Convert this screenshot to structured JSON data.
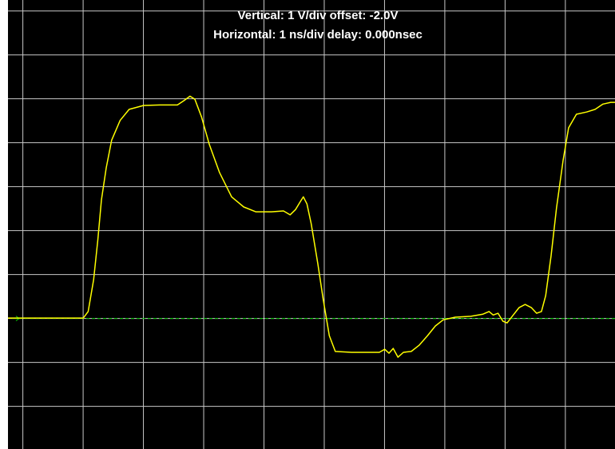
{
  "chart_data": {
    "type": "line",
    "title": "Vertical: 1 V/div  offset: -2.0V",
    "subtitle": "Horizontal: 1 ns/div  delay: 0.000nsec",
    "x": [
      -0.24,
      1.01,
      1.09,
      1.18,
      1.25,
      1.31,
      1.39,
      1.48,
      1.62,
      1.77,
      2.01,
      2.28,
      2.57,
      2.68,
      2.78,
      2.86,
      2.97,
      3.1,
      3.27,
      3.47,
      3.67,
      3.87,
      4.13,
      4.33,
      4.44,
      4.53,
      4.61,
      4.66,
      4.72,
      4.79,
      4.9,
      4.99,
      5.09,
      5.19,
      5.46,
      5.72,
      5.92,
      6.01,
      6.08,
      6.15,
      6.23,
      6.32,
      6.45,
      6.58,
      6.72,
      6.85,
      6.98,
      7.18,
      7.44,
      7.64,
      7.74,
      7.81,
      7.89,
      7.97,
      8.04,
      8.13,
      8.24,
      8.34,
      8.44,
      8.53,
      8.61,
      8.68,
      8.77,
      8.86,
      8.97,
      9.06,
      9.19,
      9.36,
      9.5,
      9.63,
      9.76,
      9.83
    ],
    "series": [
      {
        "color": "#ffff00",
        "values": [
          0,
          0,
          0.15,
          0.87,
          1.78,
          2.69,
          3.42,
          4.05,
          4.5,
          4.75,
          4.84,
          4.85,
          4.85,
          4.95,
          5.05,
          4.98,
          4.58,
          3.95,
          3.31,
          2.76,
          2.53,
          2.42,
          2.42,
          2.44,
          2.35,
          2.47,
          2.65,
          2.76,
          2.6,
          2.15,
          1.24,
          0.42,
          -0.4,
          -0.76,
          -0.78,
          -0.78,
          -0.78,
          -0.71,
          -0.8,
          -0.69,
          -0.89,
          -0.78,
          -0.76,
          -0.62,
          -0.4,
          -0.18,
          -0.04,
          0.02,
          0.04,
          0.09,
          0.15,
          0.07,
          0.11,
          -0.07,
          -0.11,
          0.05,
          0.24,
          0.31,
          0.24,
          0.11,
          0.15,
          0.51,
          1.42,
          2.51,
          3.6,
          4.33,
          4.64,
          4.69,
          4.75,
          4.87,
          4.91,
          4.91
        ]
      }
    ],
    "xlim": [
      -0.24,
      9.83
    ],
    "xticks": [
      0,
      1,
      2,
      3,
      4,
      5,
      6,
      7,
      8,
      9
    ],
    "ylim": [
      -2.98,
      7.24
    ],
    "yticks": [
      -2,
      -1,
      0,
      1,
      2,
      3,
      4,
      5,
      6,
      7
    ],
    "reference": 0,
    "reference_color": "#00cc00",
    "grid": true
  }
}
